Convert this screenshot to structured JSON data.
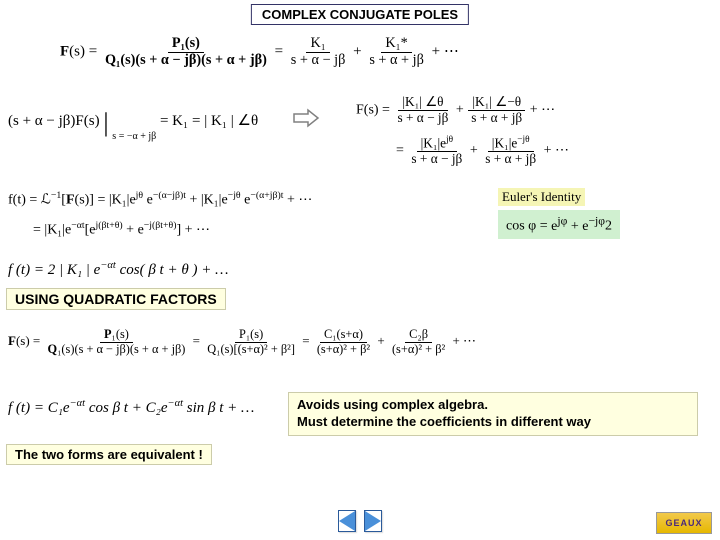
{
  "title": "COMPLEX CONJUGATE POLES",
  "eq1": {
    "lhs_bold": "F",
    "lhs_arg": "(s)",
    "eq": " = ",
    "frac1_num": "P₁(s)",
    "frac1_den": "Q₁(s)(s + α − jβ)(s + α + jβ)",
    "eq2": " = ",
    "t1_num": "K₁",
    "t1_den": "s + α − jβ",
    "plus": " + ",
    "t2_num": "K₁*",
    "t2_den": "s + α + jβ",
    "dots": " + ⋯"
  },
  "eq2": {
    "lhs": "(s + α − jβ)F(s)",
    "bar": "|",
    "sub": "s = −α + jβ",
    "eq": " = K₁ = | K₁ | ∠θ"
  },
  "eq3": {
    "lhs": "F(s) = ",
    "t1_num": "|K₁| ∠θ",
    "t1_den": "s + α − jβ",
    "plus": " + ",
    "t2_num": "|K₁| ∠−θ",
    "t2_den": "s + α + jβ",
    "dots": " + ⋯"
  },
  "eq3b": {
    "eq": " = ",
    "t1_num": "|K₁|e^{jθ}",
    "t1_num_html": "|K₁|e<sup>jθ</sup>",
    "t1_den": "s + α − jβ",
    "plus": " + ",
    "t2_num_html": "|K₁|e<sup>−jθ</sup>",
    "t2_den": "s + α + jβ",
    "dots": " + ⋯"
  },
  "eq4": {
    "line1_html": "f(t) = ℒ<sup>−1</sup>[<b>F</b>(s)] = |K₁|e<sup>jθ</sup> e<sup>−(α−jβ)t</sup> + |K₁|e<sup>−jθ</sup> e<sup>−(α+jβ)t</sup> + ⋯",
    "line2_html": "= |K₁|e<sup>−αt</sup>[e<sup>j(βt+θ)</sup> + e<sup>−j(βt+θ)</sup>] + ⋯"
  },
  "eq5_html": "f (t) = 2 | K₁ | e<sup>−αt</sup> cos( β t + θ ) + …",
  "euler_label": "Euler's Identity",
  "euler_eq_html": "cos φ = <span class='frac'><span class='num'>e<sup>jφ</sup> + e<sup>−jφ</sup></span><span class='den'>2</span></span>",
  "section2": "USING QUADRATIC FACTORS",
  "eq6": {
    "lhs_html": "<b>F</b>(s) = ",
    "f1_num_html": "<b>P</b>₁(s)",
    "f1_den_html": "<b>Q</b>₁(s)(s + α − jβ)(s + α + jβ)",
    "eq": " = ",
    "f2_num_html": "P₁(s)",
    "f2_den_html": "Q₁(s)[(s+α)² + β²]",
    "eq2": " = ",
    "t1_num_html": "C₁(s+α)",
    "t1_den_html": "(s+α)² + β²",
    "plus": " + ",
    "t2_num_html": "C₂β",
    "t2_den_html": "(s+α)² + β²",
    "dots": " + ⋯"
  },
  "eq7_html": "f (t) = C₁e<sup>−αt</sup> cos β t + C₂e<sup>−αt</sup> sin β t + …",
  "note": {
    "l1": "Avoids using complex algebra.",
    "l2": "Must determine the coefficients in different way"
  },
  "equivalent": "The two forms are equivalent !",
  "logo": "GEAUX",
  "colors": {
    "highlight": "#ffffe0",
    "green": "#d0f0d0",
    "arrow": "#808080",
    "nav_arrow": "#4a90d9"
  }
}
